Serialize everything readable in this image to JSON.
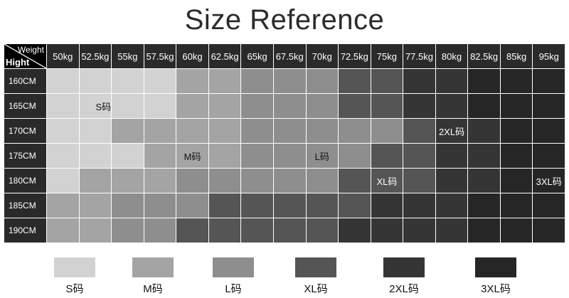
{
  "title": "Size Reference",
  "corner": {
    "weight_label": "Weight",
    "height_label": "Hight"
  },
  "weights": [
    "50kg",
    "52.5kg",
    "55kg",
    "57.5kg",
    "60kg",
    "62.5kg",
    "65kg",
    "67.5kg",
    "70kg",
    "72.5kg",
    "75kg",
    "77.5kg",
    "80kg",
    "82.5kg",
    "85kg",
    "95kg"
  ],
  "heights": [
    "160CM",
    "165CM",
    "170CM",
    "175CM",
    "180CM",
    "185CM",
    "190CM"
  ],
  "shade_levels": [
    [
      1,
      1,
      1,
      1,
      2,
      2,
      3,
      3,
      3,
      4,
      4,
      5,
      5,
      6,
      6,
      6
    ],
    [
      1,
      1,
      1,
      1,
      2,
      2,
      3,
      3,
      3,
      4,
      4,
      5,
      5,
      6,
      6,
      6
    ],
    [
      1,
      1,
      2,
      2,
      2,
      2,
      3,
      3,
      3,
      3,
      3,
      4,
      5,
      5,
      6,
      6
    ],
    [
      1,
      1,
      1,
      2,
      2,
      2,
      3,
      3,
      3,
      3,
      4,
      4,
      5,
      5,
      6,
      6
    ],
    [
      1,
      2,
      2,
      2,
      3,
      3,
      3,
      3,
      3,
      4,
      4,
      4,
      5,
      5,
      6,
      6
    ],
    [
      2,
      2,
      3,
      3,
      3,
      4,
      4,
      4,
      4,
      4,
      5,
      5,
      5,
      6,
      6,
      6
    ],
    [
      2,
      2,
      3,
      3,
      4,
      4,
      4,
      4,
      4,
      5,
      5,
      5,
      5,
      6,
      6,
      6
    ]
  ],
  "cell_labels": [
    {
      "row": 1,
      "col": 1,
      "text": "S码"
    },
    {
      "row": 2,
      "col": 12,
      "text": "2XL码"
    },
    {
      "row": 3,
      "col": 4,
      "text": "M码"
    },
    {
      "row": 3,
      "col": 8,
      "text": "L码"
    },
    {
      "row": 4,
      "col": 10,
      "text": "XL码"
    },
    {
      "row": 4,
      "col": 15,
      "text": "3XL码"
    }
  ],
  "shade_colors": {
    "1": "#d2d2d2",
    "2": "#a4a4a4",
    "3": "#8e8e8e",
    "4": "#555555",
    "5": "#353535",
    "6": "#262626"
  },
  "legend": [
    {
      "label": "S码",
      "color": "#d2d2d2"
    },
    {
      "label": "M码",
      "color": "#a4a4a4"
    },
    {
      "label": "L码",
      "color": "#8e8e8e"
    },
    {
      "label": "XL码",
      "color": "#555555"
    },
    {
      "label": "2XL码",
      "color": "#353535"
    },
    {
      "label": "3XL码",
      "color": "#262626"
    }
  ]
}
